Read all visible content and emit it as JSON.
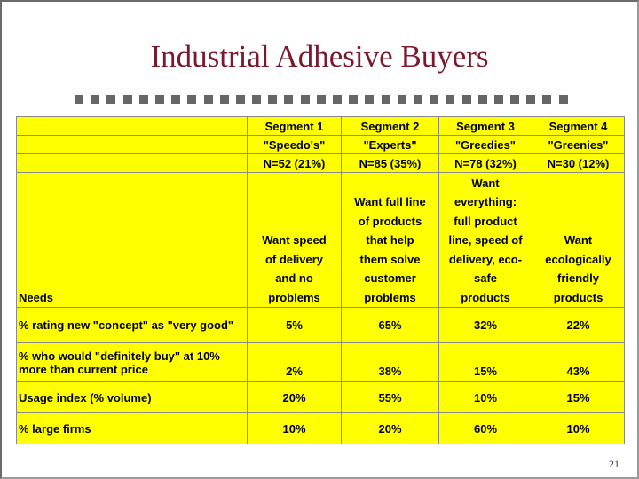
{
  "title": "Industrial Adhesive Buyers",
  "page_number": "21",
  "colors": {
    "title": "#7a1a2e",
    "table_bg": "#ffff00"
  },
  "segments": [
    {
      "name": "Segment 1",
      "alias": "\"Speedo's\"",
      "n": "N=52 (21%)",
      "needs": [
        "Want speed",
        "of delivery",
        "and no",
        "problems"
      ]
    },
    {
      "name": "Segment 2",
      "alias": "\"Experts\"",
      "n": "N=85 (35%)",
      "needs": [
        "Want full line",
        "of products",
        "that help",
        "them solve",
        "customer",
        "problems"
      ]
    },
    {
      "name": "Segment 3",
      "alias": "\"Greedies\"",
      "n": "N=78 (32%)",
      "needs": [
        "Want",
        "everything:",
        "full product",
        "line, speed of",
        "delivery, eco-",
        "safe",
        "products"
      ]
    },
    {
      "name": "Segment 4",
      "alias": "\"Greenies\"",
      "n": "N=30 (12%)",
      "needs": [
        "Want",
        "ecologically",
        "friendly",
        "products"
      ]
    }
  ],
  "needs_label": "Needs",
  "rows": [
    {
      "label": "% rating new \"concept\" as \"very good\"",
      "values": [
        "5%",
        "65%",
        "32%",
        "22%"
      ]
    },
    {
      "label_lines": [
        "% who would \"definitely buy\" at 10%",
        "more than current price"
      ],
      "values": [
        "2%",
        "38%",
        "15%",
        "43%"
      ]
    },
    {
      "label": "Usage index (% volume)",
      "values": [
        "20%",
        "55%",
        "10%",
        "15%"
      ]
    },
    {
      "label": "% large firms",
      "values": [
        "10%",
        "20%",
        "60%",
        "10%"
      ]
    }
  ]
}
